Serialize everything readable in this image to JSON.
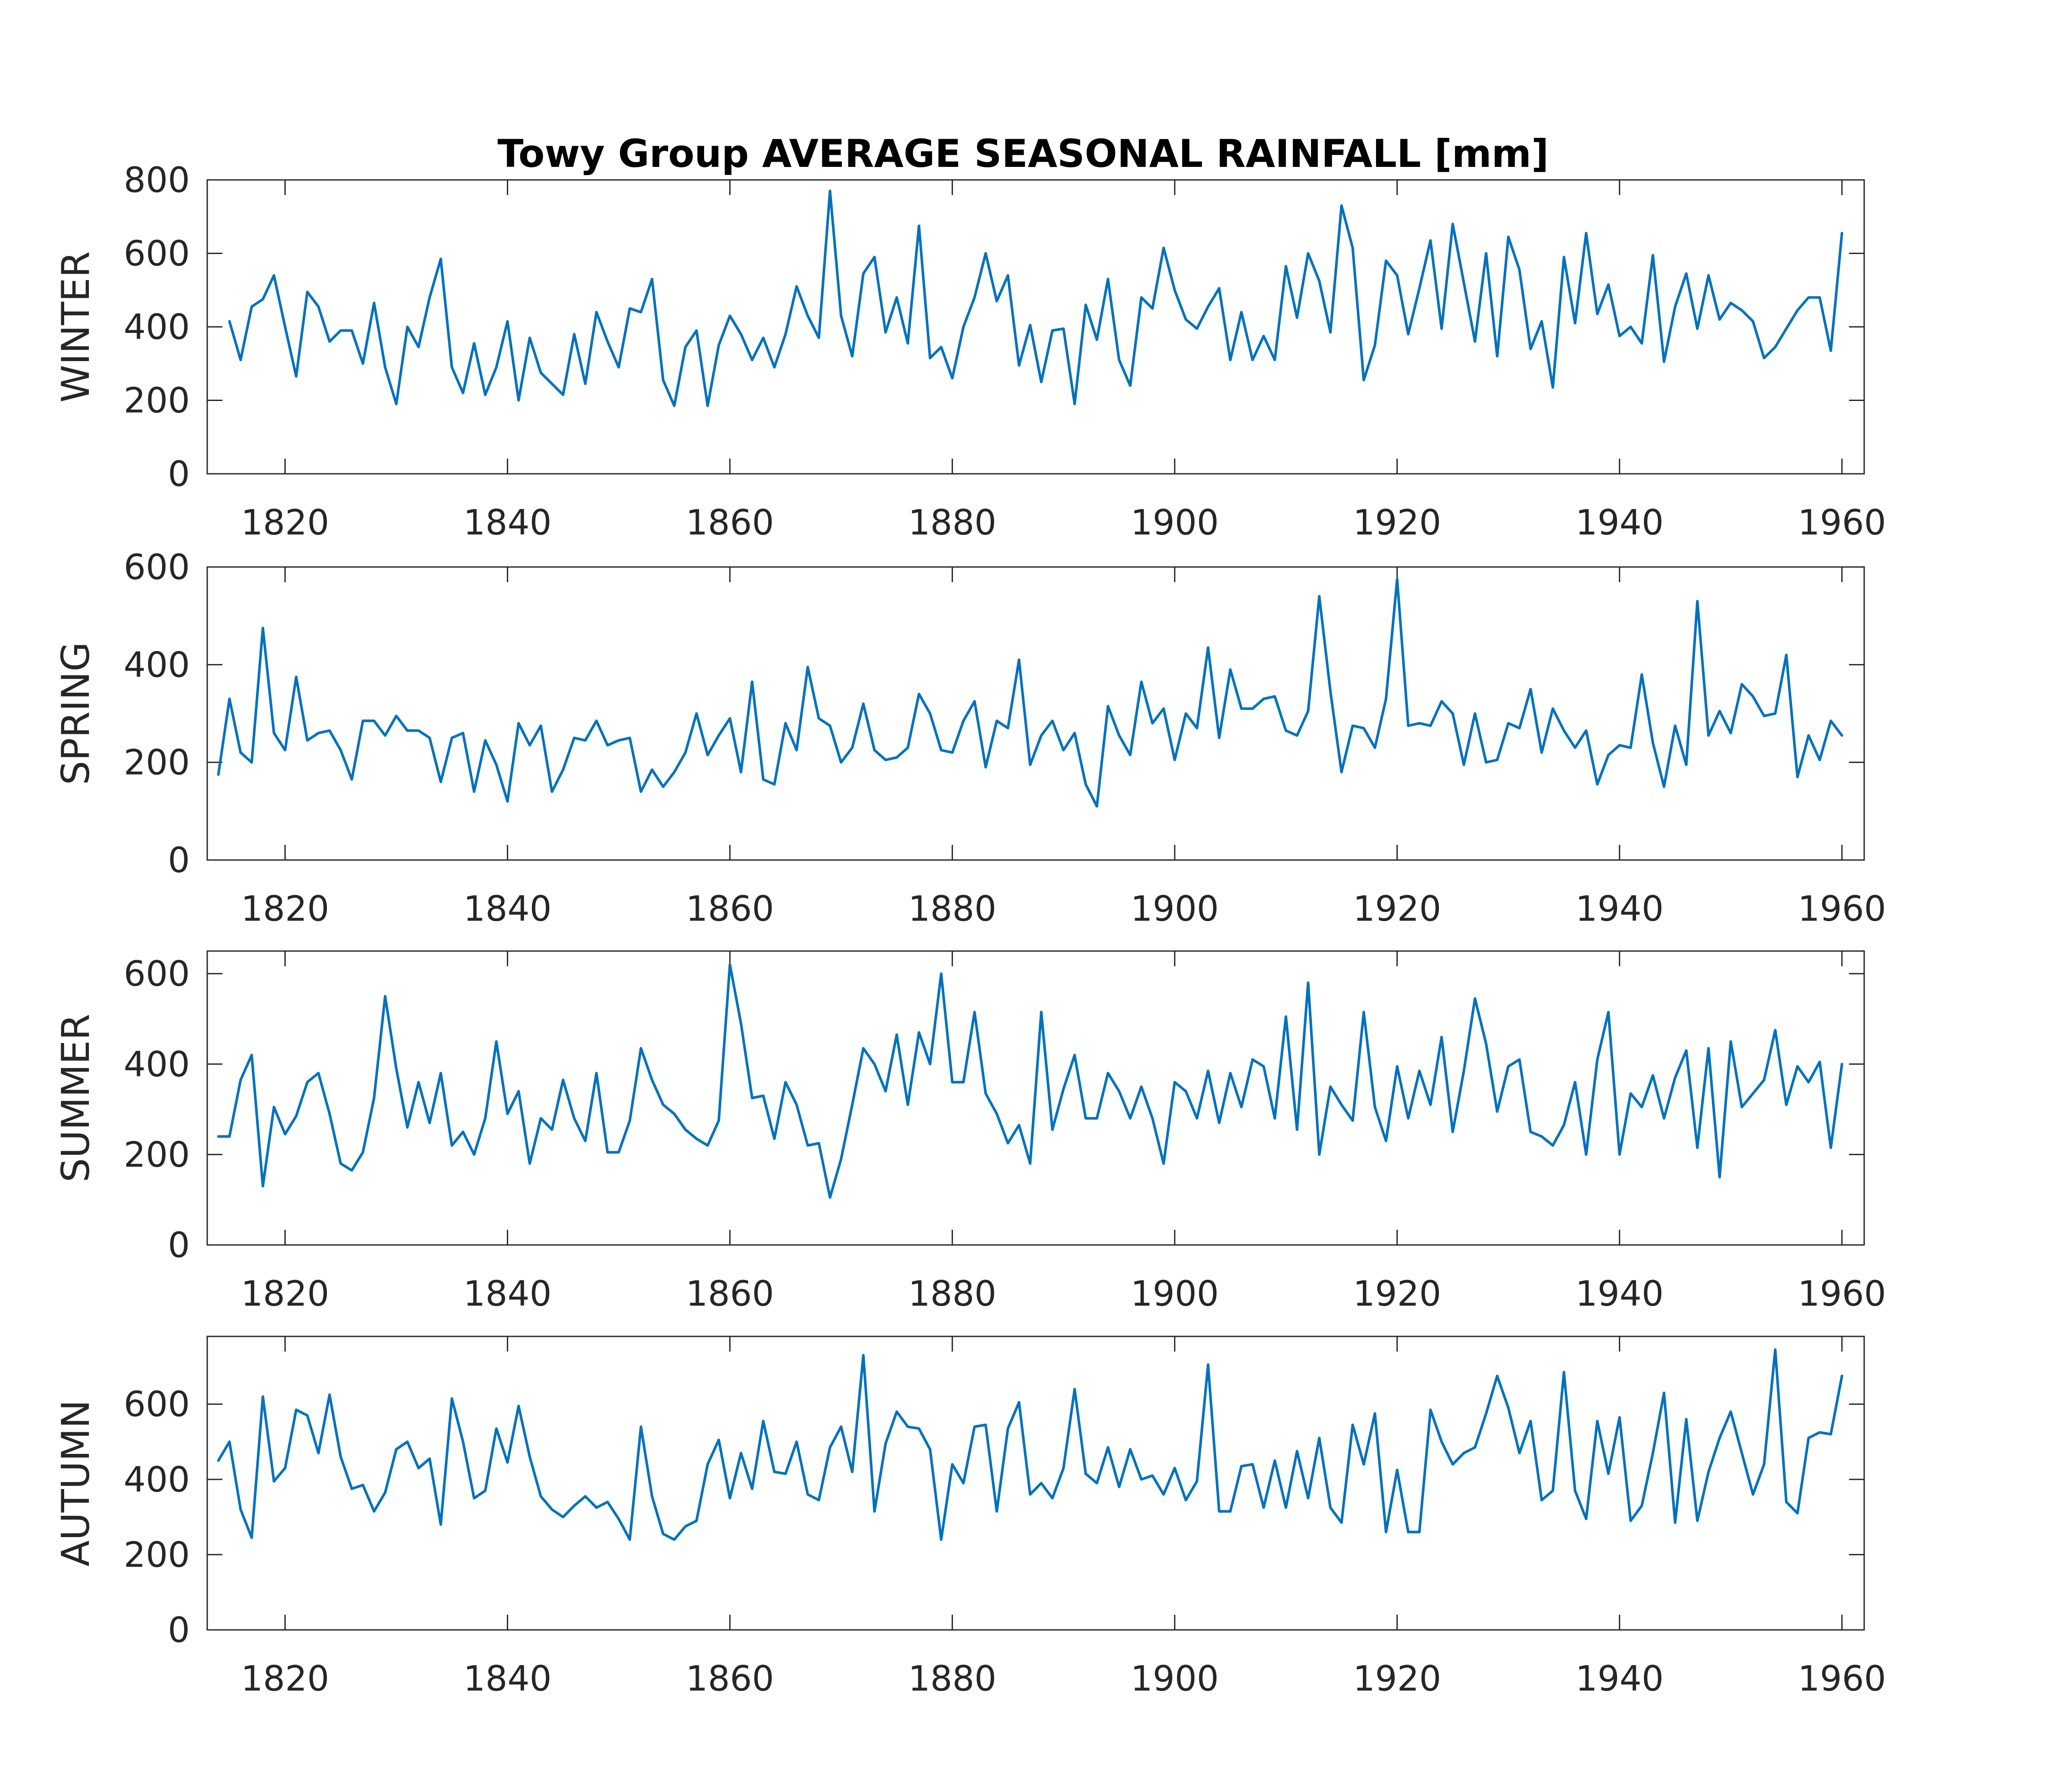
{
  "figure": {
    "title": "Towy Group AVERAGE SEASONAL RAINFALL [mm]"
  },
  "colors": {
    "line": "#0072BD",
    "axes": "#262626",
    "background": "#ffffff"
  },
  "chart_data": [
    {
      "type": "line",
      "title": "Towy Group AVERAGE SEASONAL RAINFALL [mm]",
      "xlabel": "",
      "ylabel": "WINTER",
      "xlim": [
        1813,
        1962
      ],
      "ylim": [
        0,
        800
      ],
      "xticks": [
        1820,
        1840,
        1860,
        1880,
        1900,
        1920,
        1940,
        1960
      ],
      "yticks": [
        0,
        200,
        400,
        600,
        800
      ],
      "grid": false,
      "x_start": 1815,
      "values": [
        415,
        310,
        455,
        475,
        540,
        400,
        265,
        495,
        455,
        360,
        390,
        390,
        300,
        465,
        290,
        190,
        400,
        345,
        480,
        585,
        290,
        220,
        355,
        215,
        290,
        415,
        200,
        370,
        275,
        245,
        215,
        380,
        245,
        440,
        360,
        290,
        450,
        440,
        530,
        255,
        185,
        345,
        390,
        185,
        350,
        430,
        380,
        310,
        370,
        290,
        380,
        510,
        430,
        370,
        770,
        430,
        320,
        545,
        590,
        385,
        480,
        355,
        675,
        315,
        345,
        260,
        400,
        480,
        600,
        470,
        540,
        295,
        405,
        250,
        390,
        395,
        190,
        460,
        365,
        530,
        310,
        240,
        480,
        450,
        615,
        500,
        420,
        395,
        455,
        505,
        310,
        440,
        310,
        375,
        310,
        565,
        425,
        600,
        525,
        385,
        730,
        615,
        255,
        350,
        580,
        540,
        380,
        505,
        635,
        395,
        680,
        520,
        360,
        600,
        320,
        645,
        555,
        340,
        415,
        235,
        590,
        410,
        655,
        435,
        515,
        375,
        400,
        355,
        595,
        305,
        455,
        545,
        395,
        540,
        420,
        465,
        445,
        415,
        315,
        345,
        395,
        445,
        480,
        480,
        335,
        655
      ]
    },
    {
      "type": "line",
      "xlabel": "",
      "ylabel": "SPRING",
      "xlim": [
        1813,
        1962
      ],
      "ylim": [
        0,
        600
      ],
      "xticks": [
        1820,
        1840,
        1860,
        1880,
        1900,
        1920,
        1940,
        1960
      ],
      "yticks": [
        0,
        200,
        400,
        600
      ],
      "grid": false,
      "x_start": 1814,
      "values": [
        175,
        330,
        220,
        200,
        475,
        260,
        225,
        375,
        245,
        260,
        265,
        225,
        165,
        285,
        285,
        255,
        295,
        265,
        265,
        250,
        160,
        250,
        260,
        140,
        245,
        195,
        120,
        280,
        235,
        275,
        140,
        185,
        250,
        245,
        285,
        235,
        245,
        250,
        140,
        185,
        150,
        180,
        220,
        300,
        215,
        255,
        290,
        180,
        365,
        165,
        155,
        280,
        225,
        395,
        290,
        275,
        200,
        230,
        320,
        225,
        205,
        210,
        230,
        340,
        300,
        225,
        220,
        285,
        325,
        190,
        285,
        270,
        410,
        195,
        255,
        285,
        225,
        260,
        155,
        110,
        315,
        255,
        215,
        365,
        280,
        310,
        205,
        300,
        270,
        435,
        250,
        390,
        310,
        310,
        330,
        335,
        265,
        255,
        305,
        540,
        345,
        180,
        275,
        270,
        230,
        330,
        575,
        275,
        280,
        275,
        325,
        300,
        195,
        300,
        200,
        205,
        280,
        270,
        350,
        220,
        310,
        265,
        230,
        265,
        155,
        215,
        235,
        230,
        380,
        240,
        150,
        275,
        195,
        530,
        255,
        305,
        260,
        360,
        335,
        295,
        300,
        420,
        170,
        255,
        205,
        285,
        255
      ]
    },
    {
      "type": "line",
      "xlabel": "",
      "ylabel": "SUMMER",
      "xlim": [
        1813,
        1962
      ],
      "ylim": [
        0,
        650
      ],
      "xticks": [
        1820,
        1840,
        1860,
        1880,
        1900,
        1920,
        1940,
        1960
      ],
      "yticks": [
        0,
        200,
        400,
        600
      ],
      "grid": false,
      "x_start": 1814,
      "values": [
        240,
        240,
        365,
        420,
        130,
        305,
        245,
        285,
        360,
        380,
        290,
        180,
        165,
        205,
        325,
        550,
        390,
        260,
        360,
        270,
        380,
        220,
        250,
        200,
        280,
        450,
        290,
        340,
        180,
        280,
        255,
        365,
        280,
        230,
        380,
        205,
        205,
        275,
        435,
        365,
        310,
        290,
        255,
        235,
        220,
        275,
        620,
        490,
        325,
        330,
        235,
        360,
        310,
        220,
        225,
        105,
        190,
        310,
        435,
        400,
        340,
        465,
        310,
        470,
        400,
        600,
        360,
        360,
        515,
        335,
        290,
        225,
        265,
        180,
        515,
        255,
        345,
        420,
        280,
        280,
        380,
        340,
        280,
        350,
        280,
        180,
        360,
        340,
        280,
        385,
        270,
        380,
        305,
        410,
        395,
        280,
        505,
        255,
        580,
        200,
        350,
        310,
        275,
        515,
        305,
        230,
        395,
        280,
        385,
        310,
        460,
        250,
        385,
        545,
        445,
        295,
        395,
        410,
        250,
        240,
        220,
        265,
        360,
        200,
        410,
        515,
        200,
        335,
        305,
        375,
        280,
        370,
        430,
        215,
        435,
        150,
        450,
        305,
        335,
        365,
        475,
        310,
        395,
        360,
        405,
        215,
        400
      ]
    },
    {
      "type": "line",
      "xlabel": "",
      "ylabel": "AUTUMN",
      "xlim": [
        1813,
        1962
      ],
      "ylim": [
        0,
        780
      ],
      "xticks": [
        1820,
        1840,
        1860,
        1880,
        1900,
        1920,
        1940,
        1960
      ],
      "yticks": [
        0,
        200,
        400,
        600
      ],
      "grid": false,
      "x_start": 1814,
      "values": [
        450,
        500,
        320,
        245,
        620,
        395,
        430,
        585,
        570,
        470,
        625,
        460,
        375,
        385,
        315,
        365,
        480,
        500,
        430,
        455,
        280,
        615,
        500,
        350,
        370,
        535,
        445,
        595,
        460,
        355,
        320,
        300,
        330,
        355,
        325,
        340,
        295,
        240,
        540,
        355,
        255,
        240,
        275,
        290,
        440,
        505,
        350,
        470,
        375,
        555,
        420,
        415,
        500,
        360,
        345,
        485,
        540,
        420,
        730,
        315,
        495,
        580,
        540,
        535,
        480,
        240,
        440,
        390,
        540,
        545,
        315,
        535,
        605,
        360,
        390,
        350,
        430,
        640,
        415,
        390,
        485,
        380,
        480,
        400,
        410,
        360,
        430,
        345,
        395,
        705,
        315,
        315,
        435,
        440,
        325,
        450,
        325,
        475,
        350,
        510,
        325,
        285,
        545,
        440,
        575,
        260,
        425,
        260,
        260,
        585,
        500,
        440,
        470,
        485,
        575,
        675,
        590,
        470,
        555,
        345,
        370,
        685,
        370,
        295,
        555,
        415,
        565,
        290,
        330,
        470,
        630,
        285,
        560,
        290,
        420,
        510,
        580,
        470,
        360,
        440,
        745,
        340,
        310,
        510,
        525,
        520,
        675
      ]
    }
  ]
}
